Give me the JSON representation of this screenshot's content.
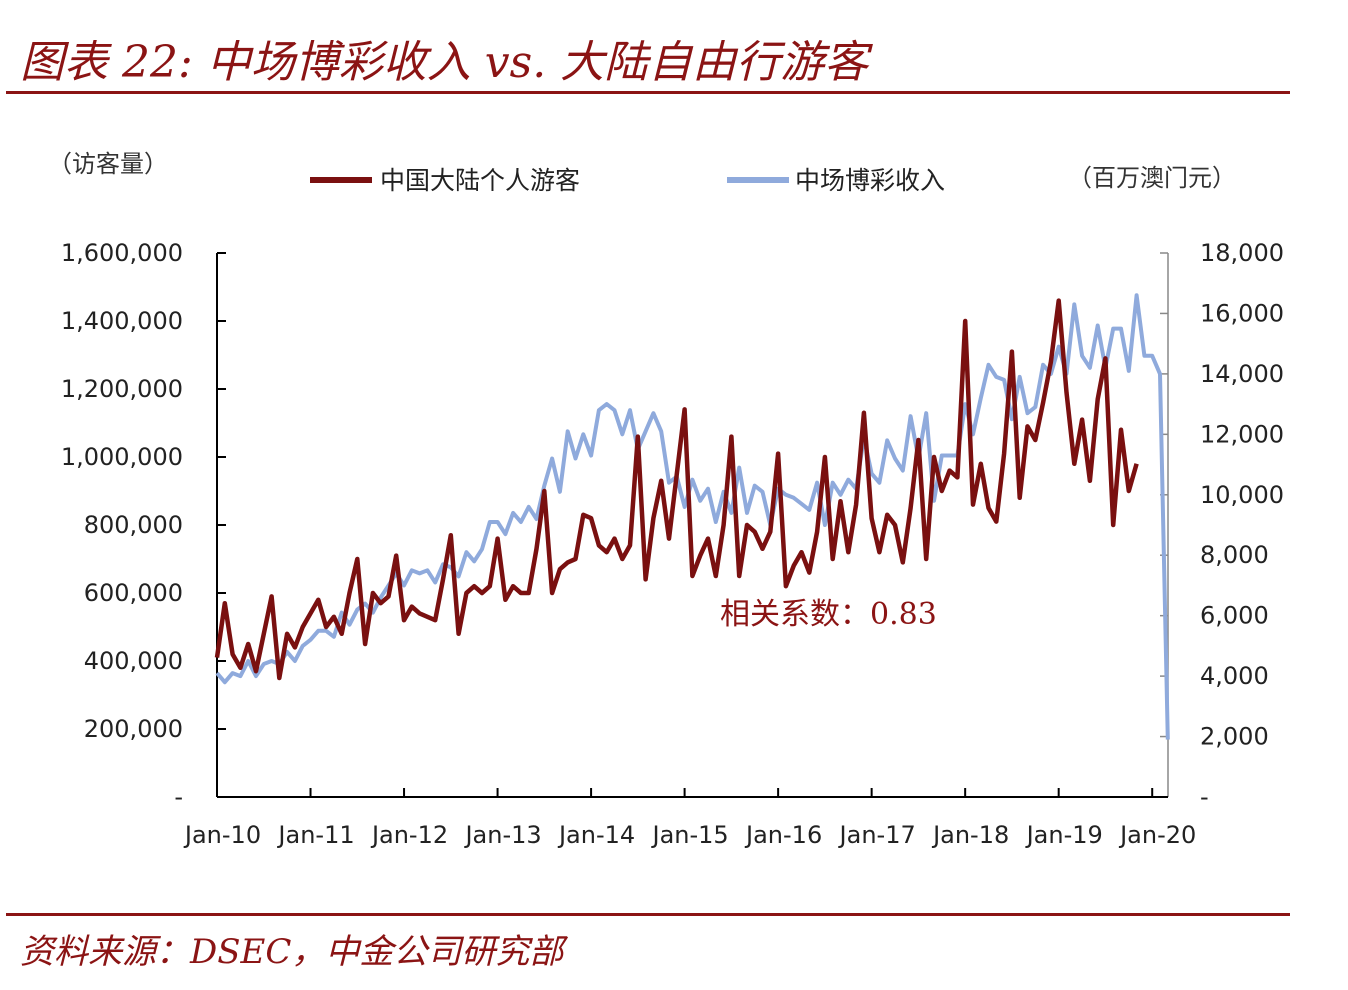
{
  "header": {
    "title": "图表 22: 中场博彩收入 vs. 大陆自由行游客"
  },
  "footer": {
    "source": "资料来源：DSEC，中金公司研究部"
  },
  "chart_data": {
    "type": "line",
    "title": "图表 22: 中场博彩收入 vs. 大陆自由行游客",
    "left_axis": {
      "unit": "（访客量）",
      "range": [
        0,
        1600000
      ],
      "tick_values": [
        0,
        200000,
        400000,
        600000,
        800000,
        1000000,
        1200000,
        1400000,
        1600000
      ],
      "tick_labels": [
        "-",
        "200,000",
        "400,000",
        "600,000",
        "800,000",
        "1,000,000",
        "1,200,000",
        "1,400,000",
        "1,600,000"
      ]
    },
    "right_axis": {
      "unit": "（百万澳门元）",
      "range": [
        0,
        18000
      ],
      "tick_values": [
        0,
        2000,
        4000,
        6000,
        8000,
        10000,
        12000,
        14000,
        16000,
        18000
      ],
      "tick_labels": [
        "-",
        "2,000",
        "4,000",
        "6,000",
        "8,000",
        "10,000",
        "12,000",
        "14,000",
        "16,000",
        "18,000"
      ]
    },
    "x_axis": {
      "start": "Jan-10",
      "tick_labels": [
        "Jan-10",
        "Jan-11",
        "Jan-12",
        "Jan-13",
        "Jan-14",
        "Jan-15",
        "Jan-16",
        "Jan-17",
        "Jan-18",
        "Jan-19",
        "Jan-20"
      ]
    },
    "legend_position": "top",
    "grid": false,
    "annotation": "相关系数：0.83",
    "series": [
      {
        "name": "中国大陆个人游客",
        "axis": "left",
        "color": "#7a1010",
        "values": [
          410000,
          570000,
          420000,
          380000,
          450000,
          370000,
          480000,
          590000,
          350000,
          480000,
          440000,
          500000,
          540000,
          580000,
          500000,
          530000,
          480000,
          600000,
          700000,
          450000,
          600000,
          570000,
          590000,
          710000,
          520000,
          560000,
          540000,
          530000,
          520000,
          640000,
          770000,
          480000,
          600000,
          620000,
          600000,
          620000,
          760000,
          580000,
          620000,
          600000,
          600000,
          730000,
          900000,
          600000,
          670000,
          690000,
          700000,
          830000,
          820000,
          740000,
          720000,
          760000,
          700000,
          740000,
          1060000,
          640000,
          820000,
          930000,
          760000,
          950000,
          1140000,
          650000,
          710000,
          760000,
          650000,
          800000,
          1060000,
          650000,
          800000,
          780000,
          730000,
          780000,
          1010000,
          620000,
          680000,
          720000,
          660000,
          780000,
          1000000,
          700000,
          870000,
          720000,
          860000,
          1130000,
          820000,
          720000,
          830000,
          800000,
          690000,
          850000,
          1050000,
          700000,
          1000000,
          900000,
          960000,
          940000,
          1400000,
          860000,
          980000,
          850000,
          810000,
          1010000,
          1310000,
          880000,
          1090000,
          1050000,
          1160000,
          1280000,
          1460000,
          1190000,
          980000,
          1110000,
          930000,
          1170000,
          1290000,
          800000,
          1080000,
          900000,
          980000
        ],
        "x_start_month": 0
      },
      {
        "name": "中场博彩收入",
        "axis": "right",
        "color": "#8faadc",
        "values": [
          4100,
          3800,
          4100,
          4000,
          4500,
          4000,
          4400,
          4500,
          4400,
          4800,
          4500,
          5000,
          5200,
          5500,
          5500,
          5300,
          6100,
          5700,
          6200,
          6400,
          6100,
          6600,
          7000,
          7400,
          7000,
          7500,
          7400,
          7500,
          7100,
          7700,
          7600,
          7300,
          8100,
          7800,
          8200,
          9100,
          9100,
          8700,
          9400,
          9100,
          9600,
          9200,
          10300,
          11200,
          10100,
          12100,
          11200,
          12000,
          11300,
          12800,
          13000,
          12800,
          12000,
          12800,
          11500,
          12100,
          12700,
          12100,
          10400,
          10600,
          9600,
          10500,
          9800,
          10200,
          9100,
          10100,
          9400,
          10900,
          9400,
          10300,
          10100,
          9000,
          10200,
          10000,
          9900,
          9700,
          9500,
          10400,
          9000,
          10400,
          10000,
          10500,
          10200,
          11900,
          10700,
          10400,
          11800,
          11200,
          10800,
          12600,
          11200,
          12700,
          9800,
          11300,
          11300,
          11300,
          13000,
          12000,
          13200,
          14300,
          13900,
          13800,
          12500,
          13900,
          12700,
          12900,
          14300,
          14000,
          14900,
          14000,
          16300,
          14600,
          14200,
          15600,
          14200,
          15500,
          15500,
          14100,
          16600,
          14600,
          14600,
          14000,
          1900
        ],
        "x_start_month": 0
      }
    ]
  }
}
